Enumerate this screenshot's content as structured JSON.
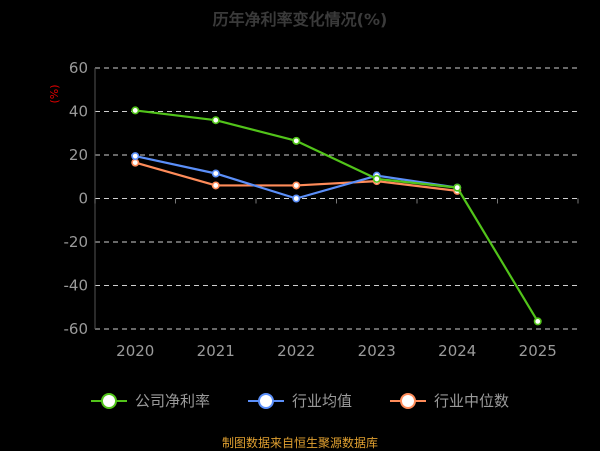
{
  "chart_data": {
    "type": "line",
    "title": "历年净利率变化情况(%)",
    "ylabel": "(%)",
    "categories": [
      "2020",
      "2021",
      "2022",
      "2023",
      "2024",
      "2025"
    ],
    "ylim": [
      -60,
      60
    ],
    "yticks": [
      60,
      40,
      20,
      0,
      -20,
      -40,
      -60
    ],
    "grid": true,
    "legend_position": "bottom",
    "series": [
      {
        "name": "公司净利率",
        "color": "#52c41a",
        "values": [
          40.5,
          36.0,
          26.5,
          9.0,
          5.0,
          -56.5
        ]
      },
      {
        "name": "行业均值",
        "color": "#5b8ff9",
        "values": [
          19.5,
          11.5,
          0.0,
          10.5,
          5.0,
          null
        ]
      },
      {
        "name": "行业中位数",
        "color": "#ff8c5a",
        "values": [
          16.5,
          6.0,
          6.0,
          8.0,
          3.5,
          null
        ]
      }
    ]
  },
  "footer": "制图数据来自恒生聚源数据库"
}
